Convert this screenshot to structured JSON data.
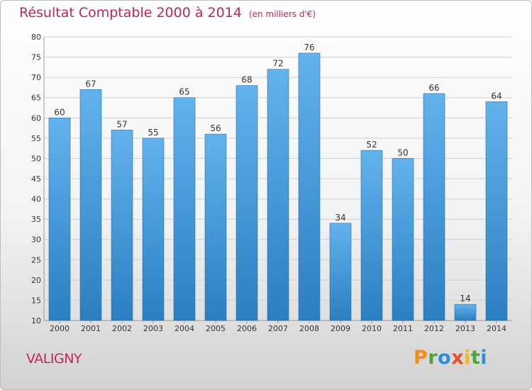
{
  "title": "Résultat Comptable 2000 à 2014",
  "subtitle": "(en milliers d'€)",
  "place": "VALIGNY",
  "brand": {
    "letters": [
      "P",
      "r",
      "o",
      "x",
      "i",
      "t",
      "i"
    ],
    "colors": [
      "#f28c1c",
      "#4aa832",
      "#2d8fd5",
      "#e94b2b",
      "#f2b51c",
      "#4aa832",
      "#2d8fd5"
    ]
  },
  "colors": {
    "title": "#c2255c",
    "bar_top": "#62b2ec",
    "bar_bottom": "#2b7fc1",
    "grid": "#cfcfcf",
    "text": "#333333"
  },
  "chart_data": {
    "type": "bar",
    "title": "Résultat Comptable 2000 à 2014",
    "subtitle": "(en milliers d'€)",
    "xlabel": "",
    "ylabel": "",
    "ylim": [
      10,
      80
    ],
    "ytick_step": 5,
    "grid": true,
    "categories": [
      "2000",
      "2001",
      "2002",
      "2003",
      "2004",
      "2005",
      "2006",
      "2007",
      "2008",
      "2009",
      "2010",
      "2011",
      "2012",
      "2013",
      "2014"
    ],
    "values": [
      60,
      67,
      57,
      55,
      65,
      56,
      68,
      72,
      76,
      34,
      52,
      50,
      66,
      14,
      64
    ]
  }
}
